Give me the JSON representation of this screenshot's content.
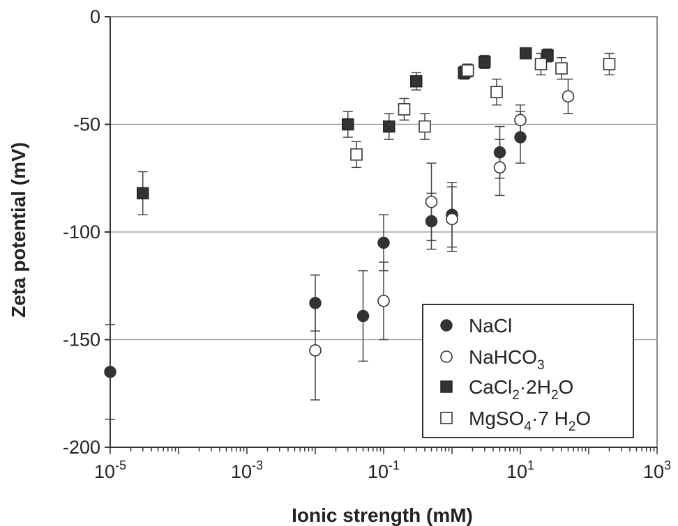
{
  "chart_data": {
    "type": "scatter",
    "xlabel": "Ionic strength (mM)",
    "ylabel": "Zeta potential (mV)",
    "xscale": "log",
    "xlim": [
      1e-05,
      1000
    ],
    "ylim": [
      -200,
      0
    ],
    "x_ticks": [
      {
        "value": 1e-05,
        "base": "10",
        "exp": "-5"
      },
      {
        "value": 0.001,
        "base": "10",
        "exp": "-3"
      },
      {
        "value": 0.1,
        "base": "10",
        "exp": "-1"
      },
      {
        "value": 10,
        "base": "10",
        "exp": "1"
      },
      {
        "value": 1000,
        "base": "10",
        "exp": "3"
      }
    ],
    "y_ticks": [
      {
        "value": 0,
        "label": "0"
      },
      {
        "value": -50,
        "label": "-50"
      },
      {
        "value": -100,
        "label": "-100"
      },
      {
        "value": -150,
        "label": "-150"
      },
      {
        "value": -200,
        "label": "-200"
      }
    ],
    "grid": "horizontal",
    "legend_position": "bottom-right",
    "series": [
      {
        "name": "NaCl",
        "marker": "filled-circle",
        "color": "#333333",
        "points": [
          {
            "x": 1e-05,
            "y": -165,
            "err": 22
          },
          {
            "x": 0.01,
            "y": -133,
            "err": 13
          },
          {
            "x": 0.05,
            "y": -139,
            "err": 21
          },
          {
            "x": 0.1,
            "y": -105,
            "err": 13
          },
          {
            "x": 0.5,
            "y": -95,
            "err": 13
          },
          {
            "x": 1,
            "y": -92,
            "err": 15
          },
          {
            "x": 5,
            "y": -63,
            "err": 12
          },
          {
            "x": 10,
            "y": -56,
            "err": 12
          }
        ]
      },
      {
        "name": "NaHCO3",
        "name_parts": {
          "main": "NaHCO",
          "sub": "3"
        },
        "marker": "open-circle",
        "color": "#333333",
        "points": [
          {
            "x": 0.01,
            "y": -155,
            "err": 23
          },
          {
            "x": 0.1,
            "y": -132,
            "err": 18
          },
          {
            "x": 0.5,
            "y": -86,
            "err": 18
          },
          {
            "x": 1,
            "y": -94,
            "err": 15
          },
          {
            "x": 5,
            "y": -70,
            "err": 13
          },
          {
            "x": 10,
            "y": -48,
            "err": 7
          },
          {
            "x": 50,
            "y": -37,
            "err": 8
          }
        ]
      },
      {
        "name": "CaCl2·2H2O",
        "name_parts": {
          "a": "CaCl",
          "sub1": "2",
          "b": "·2H",
          "sub2": "2",
          "c": "O"
        },
        "marker": "filled-square",
        "color": "#333333",
        "points": [
          {
            "x": 3e-05,
            "y": -82,
            "err": 10
          },
          {
            "x": 0.03,
            "y": -50,
            "err": 6
          },
          {
            "x": 0.12,
            "y": -51,
            "err": 6
          },
          {
            "x": 0.3,
            "y": -30,
            "err": 4
          },
          {
            "x": 1.5,
            "y": -26,
            "err": 3
          },
          {
            "x": 3,
            "y": -21,
            "err": 3
          },
          {
            "x": 12,
            "y": -17,
            "err": 2
          },
          {
            "x": 25,
            "y": -18,
            "err": 3
          }
        ]
      },
      {
        "name": "MgSO4·7 H2O",
        "name_parts": {
          "a": "MgSO",
          "sub1": "4",
          "b": "·7 H",
          "sub2": "2",
          "c": "O"
        },
        "marker": "open-square",
        "color": "#333333",
        "points": [
          {
            "x": 0.04,
            "y": -64,
            "err": 6
          },
          {
            "x": 0.2,
            "y": -43,
            "err": 5
          },
          {
            "x": 0.4,
            "y": -51,
            "err": 6
          },
          {
            "x": 1.7,
            "y": -25,
            "err": 3
          },
          {
            "x": 4.5,
            "y": -35,
            "err": 6
          },
          {
            "x": 20,
            "y": -22,
            "err": 5
          },
          {
            "x": 40,
            "y": -24,
            "err": 5
          },
          {
            "x": 200,
            "y": -22,
            "err": 5
          }
        ]
      }
    ]
  }
}
